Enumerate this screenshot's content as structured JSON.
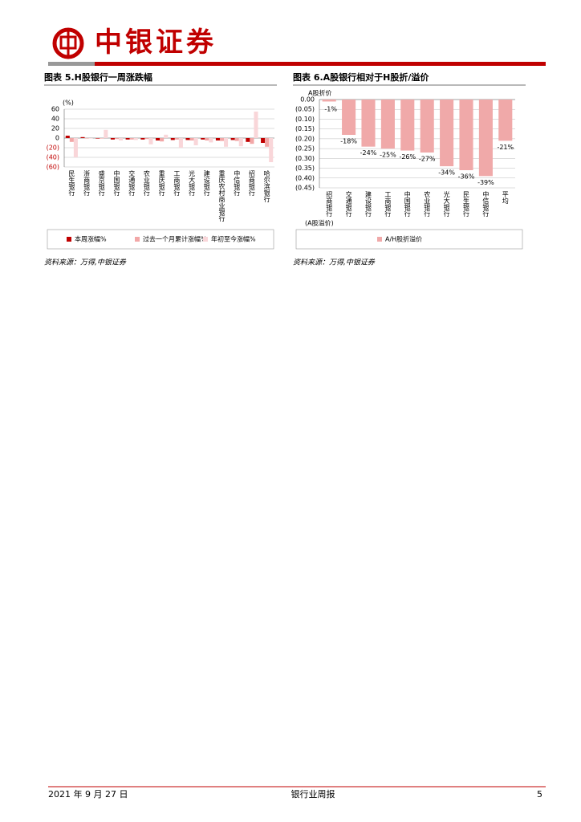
{
  "header": {
    "logo_text": "中银证券"
  },
  "chart_data": [
    {
      "type": "bar",
      "title": "图表 5.H股银行一周涨跌幅",
      "y_label": "(%)",
      "categories": [
        "民生银行",
        "浙商银行",
        "盛京银行",
        "中国银行",
        "交通银行",
        "农业银行",
        "重庆银行",
        "工商银行",
        "光大银行",
        "建设银行",
        "重庆农村商业银行",
        "中信银行",
        "招商银行",
        "哈尔滨银行"
      ],
      "series": [
        {
          "name": "本周涨幅%",
          "color": "#c00000",
          "values": [
            5,
            2,
            -1,
            -3,
            -3,
            -3,
            -5,
            -4,
            -4,
            -3,
            -5,
            -4,
            -8,
            -10
          ]
        },
        {
          "name": "过去一个月累计涨幅%",
          "color": "#f2a7a7",
          "values": [
            -8,
            -1,
            -1,
            -2,
            -3,
            -2,
            -7,
            -3,
            -5,
            -5,
            -6,
            -6,
            -12,
            -18
          ]
        },
        {
          "name": "年初至今涨幅%",
          "color": "#f9d6d9",
          "values": [
            -40,
            -1,
            17,
            -5,
            -4,
            -13,
            7,
            -20,
            -15,
            -9,
            -18,
            -17,
            55,
            -50
          ]
        }
      ],
      "ylim": [
        -60,
        60
      ],
      "yticks": [
        {
          "value": -60,
          "label": "(60)"
        },
        {
          "value": -40,
          "label": "(40)"
        },
        {
          "value": -20,
          "label": "(20)"
        },
        0,
        20,
        40,
        60
      ],
      "negative_tick_color": "#c00000",
      "grid": true,
      "legend": "bottom",
      "source": "资料来源：万得,中银证券"
    },
    {
      "type": "bar",
      "title": "图表 6.A股银行相对于H股折/溢价",
      "y_label": "A股折价",
      "y_label_negative": "(A股溢价)",
      "categories": [
        "招商银行",
        "交通银行",
        "建设银行",
        "工商银行",
        "中国银行",
        "农业银行",
        "光大银行",
        "民生银行",
        "中信银行",
        "平均"
      ],
      "series": [
        {
          "name": "A/H股折溢价",
          "color": "#f0a9a9",
          "values": [
            -0.01,
            -0.18,
            -0.24,
            -0.25,
            -0.26,
            -0.27,
            -0.34,
            -0.36,
            -0.39,
            -0.21
          ],
          "value_labels": [
            "-1%",
            "-18%",
            "-24%",
            "-25%",
            "-26%",
            "-27%",
            "-34%",
            "-36%",
            "-39%",
            "-21%"
          ]
        }
      ],
      "ylim": [
        -0.45,
        0
      ],
      "yticks": [
        {
          "value": 0,
          "label": "0.00"
        },
        {
          "value": -0.05,
          "label": "(0.05)"
        },
        {
          "value": -0.1,
          "label": "(0.10)"
        },
        {
          "value": -0.15,
          "label": "(0.15)"
        },
        {
          "value": -0.2,
          "label": "(0.20)"
        },
        {
          "value": -0.25,
          "label": "(0.25)"
        },
        {
          "value": -0.3,
          "label": "(0.30)"
        },
        {
          "value": -0.35,
          "label": "(0.35)"
        },
        {
          "value": -0.4,
          "label": "(0.40)"
        },
        {
          "value": -0.45,
          "label": "(0.45)"
        }
      ],
      "grid": true,
      "legend": "bottom",
      "source": "资料来源：万得,中银证券"
    }
  ],
  "footer": {
    "date": "2021 年 9 月 27 日",
    "title": "银行业周报",
    "page": "5"
  }
}
